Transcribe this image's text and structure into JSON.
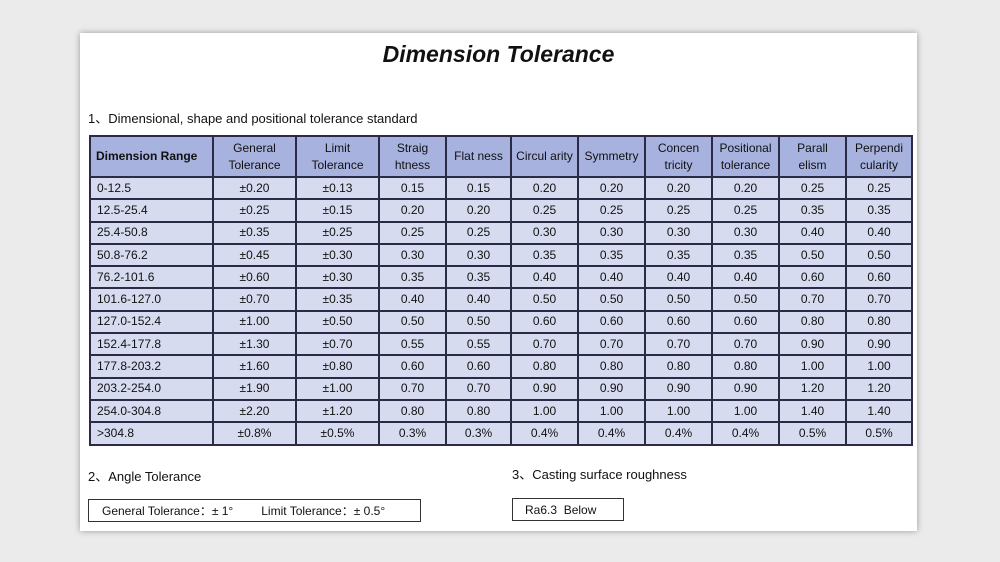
{
  "title": "Dimension Tolerance",
  "section1": {
    "heading": "1、Dimensional, shape and positional tolerance standard"
  },
  "table": {
    "headers": [
      "Dimension Range",
      "General Tolerance",
      "Limit Tolerance",
      "Straig htness",
      "Flat ness",
      "Circul arity",
      "Symmetry",
      "Concen tricity",
      "Positional tolerance",
      "Parall elism",
      "Perpendi cularity"
    ],
    "rows": [
      [
        "0-12.5",
        "±0.20",
        "±0.13",
        "0.15",
        "0.15",
        "0.20",
        "0.20",
        "0.20",
        "0.20",
        "0.25",
        "0.25"
      ],
      [
        "12.5-25.4",
        "±0.25",
        "±0.15",
        "0.20",
        "0.20",
        "0.25",
        "0.25",
        "0.25",
        "0.25",
        "0.35",
        "0.35"
      ],
      [
        "25.4-50.8",
        "±0.35",
        "±0.25",
        "0.25",
        "0.25",
        "0.30",
        "0.30",
        "0.30",
        "0.30",
        "0.40",
        "0.40"
      ],
      [
        "50.8-76.2",
        "±0.45",
        "±0.30",
        "0.30",
        "0.30",
        "0.35",
        "0.35",
        "0.35",
        "0.35",
        "0.50",
        "0.50"
      ],
      [
        "76.2-101.6",
        "±0.60",
        "±0.30",
        "0.35",
        "0.35",
        "0.40",
        "0.40",
        "0.40",
        "0.40",
        "0.60",
        "0.60"
      ],
      [
        "101.6-127.0",
        "±0.70",
        "±0.35",
        "0.40",
        "0.40",
        "0.50",
        "0.50",
        "0.50",
        "0.50",
        "0.70",
        "0.70"
      ],
      [
        "127.0-152.4",
        "±1.00",
        "±0.50",
        "0.50",
        "0.50",
        "0.60",
        "0.60",
        "0.60",
        "0.60",
        "0.80",
        "0.80"
      ],
      [
        "152.4-177.8",
        "±1.30",
        "±0.70",
        "0.55",
        "0.55",
        "0.70",
        "0.70",
        "0.70",
        "0.70",
        "0.90",
        "0.90"
      ],
      [
        "177.8-203.2",
        "±1.60",
        "±0.80",
        "0.60",
        "0.60",
        "0.80",
        "0.80",
        "0.80",
        "0.80",
        "1.00",
        "1.00"
      ],
      [
        "203.2-254.0",
        "±1.90",
        "±1.00",
        "0.70",
        "0.70",
        "0.90",
        "0.90",
        "0.90",
        "0.90",
        "1.20",
        "1.20"
      ],
      [
        "254.0-304.8",
        "±2.20",
        "±1.20",
        "0.80",
        "0.80",
        "1.00",
        "1.00",
        "1.00",
        "1.00",
        "1.40",
        "1.40"
      ],
      [
        ">304.8",
        "±0.8%",
        "±0.5%",
        "0.3%",
        "0.3%",
        "0.4%",
        "0.4%",
        "0.4%",
        "0.4%",
        "0.5%",
        "0.5%"
      ]
    ]
  },
  "section2": {
    "heading": "2、Angle Tolerance",
    "general": "General Tolerance：± 1°",
    "limit": "Limit Tolerance：± 0.5°"
  },
  "section3": {
    "heading": "3、Casting surface roughness",
    "value": "Ra6.3  Below"
  },
  "colors": {
    "header_bg": "#a7b2de",
    "cell_bg": "#d7dbf0",
    "grid": "#2b2b48",
    "page_bg": "#ebebeb"
  }
}
